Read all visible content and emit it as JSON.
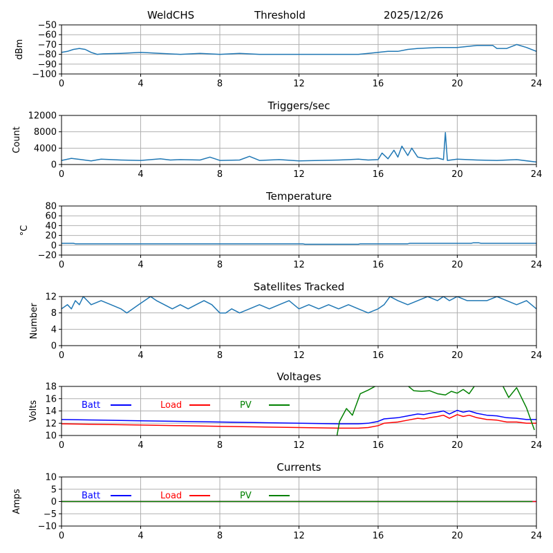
{
  "header": {
    "station": "WeldCHS",
    "mode": "Threshold",
    "date": "2025/12/26"
  },
  "chart_data": [
    {
      "type": "line",
      "title": "",
      "xlabel": "",
      "ylabel": "dBm",
      "xlim": [
        0,
        24
      ],
      "ylim": [
        -100,
        -50
      ],
      "xticks": [
        0,
        4,
        8,
        12,
        16,
        20,
        24
      ],
      "yticks": [
        -100,
        -90,
        -80,
        -70,
        -60,
        -50
      ],
      "ytick_labels": [
        "−100",
        "−90",
        "−80",
        "−70",
        "−60",
        "−50"
      ],
      "grid": true,
      "series": [
        {
          "name": "Threshold",
          "color": "#1f77b4",
          "x": [
            0,
            0.3,
            0.6,
            0.9,
            1.2,
            1.5,
            1.8,
            2.1,
            3,
            4,
            5,
            6,
            7,
            8,
            9,
            10,
            11,
            12,
            13,
            14,
            15,
            15.5,
            16,
            16.5,
            17,
            17.5,
            18,
            19,
            20,
            20.5,
            21,
            21.5,
            21.8,
            22,
            22.5,
            23,
            23.5,
            24
          ],
          "y": [
            -78,
            -77,
            -75,
            -74,
            -75,
            -78,
            -80,
            -79.5,
            -79,
            -78,
            -79,
            -80,
            -79,
            -80,
            -79,
            -80,
            -80,
            -80,
            -80,
            -80,
            -80,
            -79,
            -78,
            -77,
            -77,
            -75,
            -74,
            -73,
            -73,
            -72,
            -71,
            -71,
            -71,
            -74,
            -74,
            -70,
            -73,
            -77
          ]
        }
      ]
    },
    {
      "type": "line",
      "title": "Triggers/sec",
      "xlabel": "",
      "ylabel": "Count",
      "xlim": [
        0,
        24
      ],
      "ylim": [
        0,
        12000
      ],
      "xticks": [
        0,
        4,
        8,
        12,
        16,
        20,
        24
      ],
      "yticks": [
        0,
        4000,
        8000,
        12000
      ],
      "ytick_labels": [
        "0",
        "4000",
        "8000",
        "12000"
      ],
      "grid": true,
      "series": [
        {
          "name": "Triggers",
          "color": "#1f77b4",
          "x": [
            0,
            0.5,
            1,
            1.5,
            2,
            3,
            4,
            5,
            5.5,
            6,
            7,
            7.5,
            8,
            9,
            9.5,
            10,
            11,
            12,
            13,
            14,
            15,
            15.5,
            16,
            16.2,
            16.5,
            16.8,
            17,
            17.2,
            17.5,
            17.7,
            18,
            18.5,
            19,
            19.3,
            19.4,
            19.5,
            20,
            21,
            22,
            23,
            24
          ],
          "y": [
            1000,
            1500,
            1200,
            900,
            1300,
            1100,
            1000,
            1400,
            1100,
            1200,
            1100,
            1800,
            1000,
            1100,
            2000,
            1000,
            1200,
            900,
            1000,
            1100,
            1300,
            1100,
            1200,
            2800,
            1400,
            3500,
            1800,
            4500,
            2200,
            4000,
            1800,
            1400,
            1600,
            1200,
            7800,
            1000,
            1300,
            1100,
            1000,
            1200,
            600
          ]
        }
      ]
    },
    {
      "type": "line",
      "title": "Temperature",
      "xlabel": "",
      "ylabel": "°C",
      "xlim": [
        0,
        24
      ],
      "ylim": [
        -20,
        80
      ],
      "xticks": [
        0,
        4,
        8,
        12,
        16,
        20,
        24
      ],
      "yticks": [
        -20,
        0,
        20,
        40,
        60,
        80
      ],
      "ytick_labels": [
        "−20",
        "0",
        "20",
        "40",
        "60",
        "80"
      ],
      "grid": true,
      "series": [
        {
          "name": "Temperature",
          "color": "#1f77b4",
          "x": [
            0,
            0.6,
            0.7,
            12.2,
            12.3,
            15,
            15.1,
            17.5,
            17.6,
            20.7,
            20.8,
            21.1,
            21.2,
            24
          ],
          "y": [
            4,
            4,
            3,
            3,
            2,
            2,
            3,
            3,
            4,
            4,
            5,
            5,
            4,
            4
          ]
        }
      ]
    },
    {
      "type": "line",
      "title": "Satellites Tracked",
      "xlabel": "",
      "ylabel": "Number",
      "xlim": [
        0,
        24
      ],
      "ylim": [
        0,
        12
      ],
      "xticks": [
        0,
        4,
        8,
        12,
        16,
        20,
        24
      ],
      "yticks": [
        0,
        4,
        8,
        12
      ],
      "ytick_labels": [
        "0",
        "4",
        "8",
        "12"
      ],
      "grid": true,
      "series": [
        {
          "name": "Satellites",
          "color": "#1f77b4",
          "x": [
            0,
            0.3,
            0.5,
            0.7,
            0.9,
            1.1,
            1.3,
            1.5,
            2,
            2.5,
            3,
            3.3,
            3.6,
            3.9,
            4.2,
            4.5,
            4.8,
            5.2,
            5.6,
            6,
            6.4,
            6.8,
            7.2,
            7.6,
            8,
            8.3,
            8.6,
            9,
            9.5,
            10,
            10.5,
            11,
            11.5,
            12,
            12.5,
            13,
            13.5,
            14,
            14.5,
            15,
            15.5,
            16,
            16.3,
            16.6,
            17,
            17.5,
            18,
            18.5,
            19,
            19.3,
            19.6,
            20,
            20.5,
            21,
            21.5,
            22,
            22.5,
            23,
            23.5,
            24
          ],
          "y": [
            9,
            10,
            9,
            11,
            10,
            12,
            11,
            10,
            11,
            10,
            9,
            8,
            9,
            10,
            11,
            12,
            11,
            10,
            9,
            10,
            9,
            10,
            11,
            10,
            8,
            8,
            9,
            8,
            9,
            10,
            9,
            10,
            11,
            9,
            10,
            9,
            10,
            9,
            10,
            9,
            8,
            9,
            10,
            12,
            11,
            10,
            11,
            12,
            11,
            12,
            11,
            12,
            11,
            11,
            11,
            12,
            11,
            10,
            11,
            9
          ]
        }
      ]
    },
    {
      "type": "line",
      "title": "Voltages",
      "xlabel": "",
      "ylabel": "Volts",
      "xlim": [
        0,
        24
      ],
      "ylim": [
        10,
        18
      ],
      "xticks": [
        0,
        4,
        8,
        12,
        16,
        20,
        24
      ],
      "yticks": [
        10,
        12,
        14,
        16,
        18
      ],
      "ytick_labels": [
        "10",
        "12",
        "14",
        "16",
        "18"
      ],
      "grid": true,
      "legend": "top-left",
      "series": [
        {
          "name": "Batt",
          "color": "#0000ff",
          "x": [
            0,
            2,
            4,
            6,
            8,
            10,
            12,
            14,
            15,
            15.5,
            16,
            16.3,
            17,
            17.5,
            18,
            18.3,
            18.6,
            19,
            19.3,
            19.6,
            20,
            20.3,
            20.6,
            21,
            21.5,
            22,
            22.5,
            23,
            23.5,
            24
          ],
          "y": [
            12.6,
            12.5,
            12.4,
            12.3,
            12.2,
            12.1,
            12,
            11.9,
            11.9,
            12,
            12.3,
            12.7,
            12.9,
            13.2,
            13.5,
            13.4,
            13.6,
            13.8,
            14,
            13.5,
            14.1,
            13.8,
            14,
            13.6,
            13.3,
            13.2,
            12.9,
            12.8,
            12.6,
            12.6
          ]
        },
        {
          "name": "Load",
          "color": "#ff0000",
          "x": [
            0,
            2,
            4,
            6,
            8,
            10,
            12,
            14,
            15,
            15.5,
            16,
            16.3,
            17,
            17.5,
            18,
            18.3,
            18.6,
            19,
            19.3,
            19.6,
            20,
            20.3,
            20.6,
            21,
            21.5,
            22,
            22.5,
            23,
            23.5,
            24
          ],
          "y": [
            11.9,
            11.8,
            11.7,
            11.6,
            11.5,
            11.4,
            11.3,
            11.2,
            11.2,
            11.3,
            11.6,
            12,
            12.2,
            12.5,
            12.8,
            12.7,
            12.9,
            13.1,
            13.3,
            12.8,
            13.4,
            13.1,
            13.3,
            12.9,
            12.6,
            12.5,
            12.2,
            12.2,
            12,
            12
          ]
        },
        {
          "name": "PV",
          "color": "#008000",
          "x": [
            13.9,
            14.05,
            14.4,
            14.7,
            15.1,
            15.5,
            15.9,
            17.5,
            17.8,
            18.2,
            18.6,
            19,
            19.4,
            19.7,
            20,
            20.3,
            20.6,
            20.9,
            22.3,
            22.6,
            23,
            23.5,
            23.9
          ],
          "y": [
            9.6,
            12.3,
            14.4,
            13.3,
            16.8,
            17.4,
            18.1,
            18.1,
            17.3,
            17.2,
            17.3,
            16.8,
            16.6,
            17.2,
            16.9,
            17.5,
            16.8,
            18.2,
            18.1,
            16.2,
            17.8,
            14.5,
            10.9
          ]
        }
      ]
    },
    {
      "type": "line",
      "title": "Currents",
      "xlabel": "",
      "ylabel": "Amps",
      "xlim": [
        0,
        24
      ],
      "ylim": [
        -10,
        10
      ],
      "xticks": [
        0,
        4,
        8,
        12,
        16,
        20,
        24
      ],
      "yticks": [
        -10,
        -5,
        0,
        5,
        10
      ],
      "ytick_labels": [
        "−10",
        "−5",
        "0",
        "5",
        "10"
      ],
      "grid": true,
      "legend": "top-left",
      "series": [
        {
          "name": "Batt",
          "color": "#0000ff",
          "x": [
            0,
            24
          ],
          "y": [
            0,
            0
          ]
        },
        {
          "name": "Load",
          "color": "#ff0000",
          "x": [
            0,
            24
          ],
          "y": [
            0,
            0
          ]
        },
        {
          "name": "PV",
          "color": "#008000",
          "x": [
            0,
            23.8
          ],
          "y": [
            0,
            0
          ]
        }
      ]
    }
  ]
}
